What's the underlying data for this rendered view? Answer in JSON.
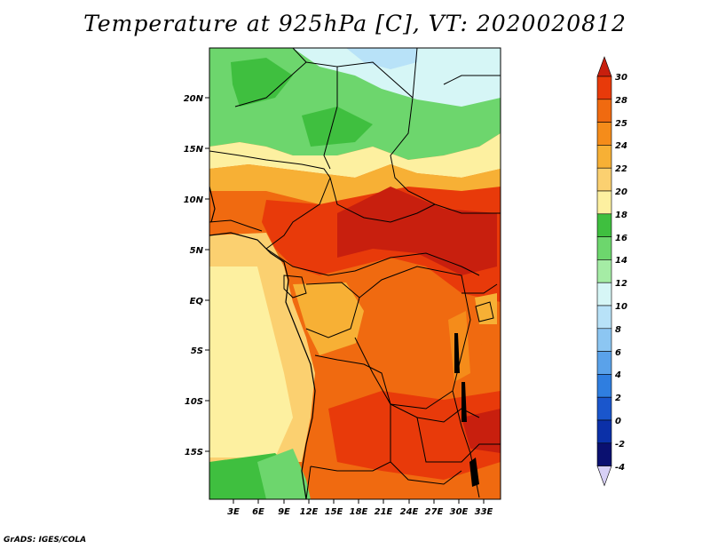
{
  "title": "Temperature at 925hPa [C], VT: 2020020812",
  "credit": "GrADS: IGES/COLA",
  "map": {
    "lat_labels": [
      "20N",
      "15N",
      "10N",
      "5N",
      "EQ",
      "5S",
      "10S",
      "15S"
    ],
    "lon_labels": [
      "3E",
      "6E",
      "9E",
      "12E",
      "15E",
      "18E",
      "21E",
      "24E",
      "27E",
      "30E",
      "33E"
    ],
    "variable": "temperature at 925hPa",
    "units": "C"
  },
  "colorbar": {
    "labels": [
      "30",
      "28",
      "25",
      "24",
      "22",
      "20",
      "18",
      "16",
      "14",
      "12",
      "10",
      "8",
      "6",
      "4",
      "2",
      "0",
      "-2",
      "-4"
    ],
    "colors": [
      "#c81f0e",
      "#e83a0a",
      "#f06a10",
      "#f58c1a",
      "#f7b035",
      "#fbd070",
      "#fdf0a0",
      "#3fbf3f",
      "#6dd66d",
      "#a5eca5",
      "#d6f6f6",
      "#b8e2f8",
      "#8cc6f2",
      "#5aa2ea",
      "#2f7ee0",
      "#1a56cc",
      "#0b30a8",
      "#0a1070",
      "#d7d0f6"
    ]
  }
}
